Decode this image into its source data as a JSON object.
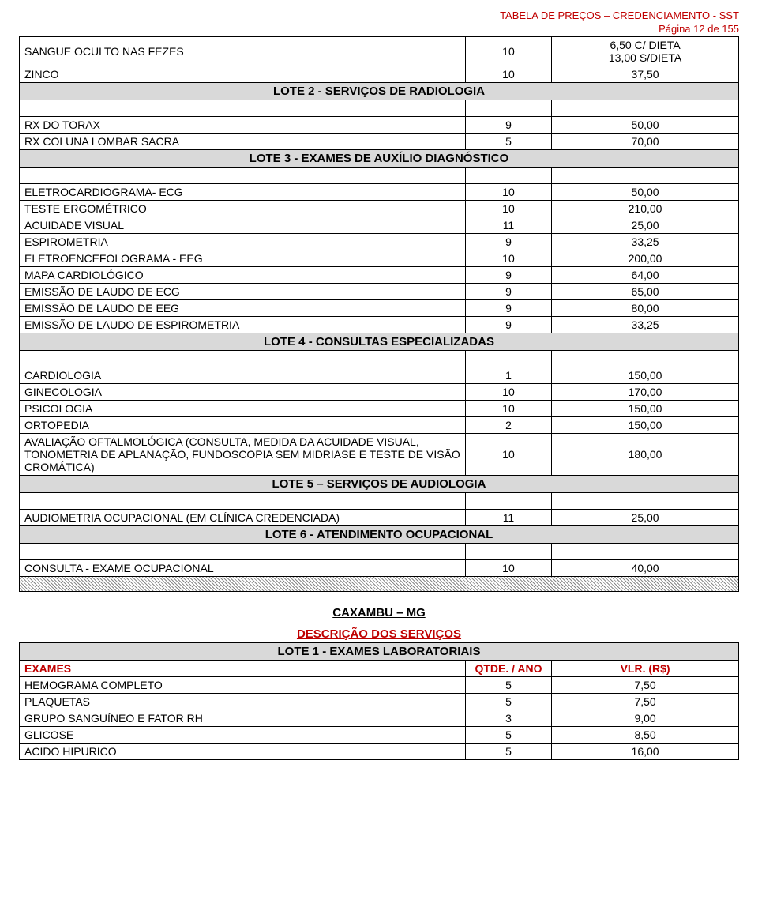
{
  "header": {
    "title": "TABELA DE PREÇOS – CREDENCIAMENTO - SST",
    "page": "Página 12 de 155"
  },
  "rows1": [
    {
      "d": "SANGUE OCULTO NAS FEZES",
      "q": "10",
      "v": "6,50 C/ DIETA\n13,00 S/DIETA"
    },
    {
      "d": "ZINCO",
      "q": "10",
      "v": "37,50"
    }
  ],
  "lote2": "LOTE 2 - SERVIÇOS DE RADIOLOGIA",
  "rows2": [
    {
      "d": "RX DO TORAX",
      "q": "9",
      "v": "50,00"
    },
    {
      "d": "RX COLUNA LOMBAR SACRA",
      "q": "5",
      "v": "70,00"
    }
  ],
  "lote3": "LOTE 3 - EXAMES DE AUXÍLIO DIAGNÓSTICO",
  "rows3": [
    {
      "d": "ELETROCARDIOGRAMA- ECG",
      "q": "10",
      "v": "50,00"
    },
    {
      "d": "TESTE ERGOMÉTRICO",
      "q": "10",
      "v": "210,00"
    },
    {
      "d": "ACUIDADE VISUAL",
      "q": "11",
      "v": "25,00"
    },
    {
      "d": "ESPIROMETRIA",
      "q": "9",
      "v": "33,25"
    },
    {
      "d": "ELETROENCEFOLOGRAMA - EEG",
      "q": "10",
      "v": "200,00"
    },
    {
      "d": "MAPA CARDIOLÓGICO",
      "q": "9",
      "v": "64,00"
    },
    {
      "d": "EMISSÃO DE LAUDO DE ECG",
      "q": "9",
      "v": "65,00"
    },
    {
      "d": "EMISSÃO DE LAUDO DE EEG",
      "q": "9",
      "v": "80,00"
    },
    {
      "d": "EMISSÃO DE LAUDO DE ESPIROMETRIA",
      "q": "9",
      "v": "33,25"
    }
  ],
  "lote4": "LOTE 4 - CONSULTAS ESPECIALIZADAS",
  "rows4": [
    {
      "d": "CARDIOLOGIA",
      "q": "1",
      "v": "150,00"
    },
    {
      "d": "GINECOLOGIA",
      "q": "10",
      "v": "170,00"
    },
    {
      "d": "PSICOLOGIA",
      "q": "10",
      "v": "150,00"
    },
    {
      "d": "ORTOPEDIA",
      "q": "2",
      "v": "150,00"
    },
    {
      "d": "AVALIAÇÃO OFTALMOLÓGICA (CONSULTA, MEDIDA DA ACUIDADE VISUAL, TONOMETRIA DE APLANAÇÃO, FUNDOSCOPIA SEM MIDRIASE E TESTE DE VISÃO CROMÁTICA)",
      "q": "10",
      "v": "180,00"
    }
  ],
  "lote5": "LOTE 5 – SERVIÇOS DE AUDIOLOGIA",
  "rows5": [
    {
      "d": "AUDIOMETRIA OCUPACIONAL (EM CLÍNICA CREDENCIADA)",
      "q": "11",
      "v": "25,00"
    }
  ],
  "lote6": "LOTE 6 - ATENDIMENTO OCUPACIONAL",
  "rows6": [
    {
      "d": "CONSULTA - EXAME OCUPACIONAL",
      "q": "10",
      "v": "40,00"
    }
  ],
  "location": "CAXAMBU – MG",
  "desc_serv": "DESCRIÇÃO DOS SERVIÇOS",
  "lote1b": "LOTE 1 - EXAMES LABORATORIAIS",
  "colhead": {
    "exames": "EXAMES",
    "qtde": "QTDE. / ANO",
    "vlr": "VLR. (R$)"
  },
  "rows7": [
    {
      "d": "HEMOGRAMA COMPLETO",
      "q": "5",
      "v": "7,50"
    },
    {
      "d": "PLAQUETAS",
      "q": "5",
      "v": "7,50"
    },
    {
      "d": "GRUPO SANGUÍNEO E FATOR RH",
      "q": "3",
      "v": "9,00"
    },
    {
      "d": "GLICOSE",
      "q": "5",
      "v": "8,50"
    },
    {
      "d": "ACIDO HIPURICO",
      "q": "5",
      "v": "16,00"
    }
  ]
}
